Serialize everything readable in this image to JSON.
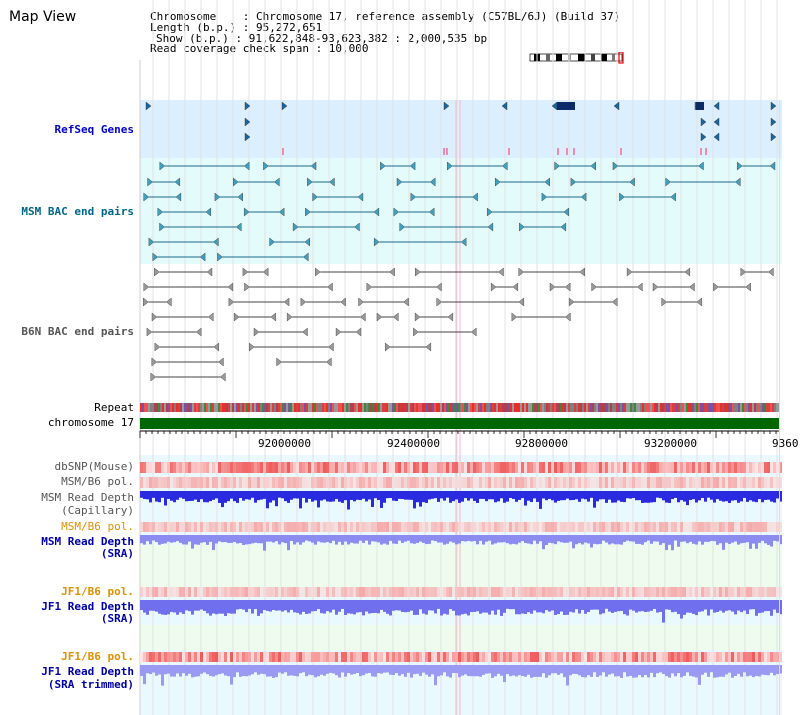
{
  "page_title": "Map View",
  "info": {
    "line1": "Chromosome    : Chromosome 17, reference assembly (C57BL/6J) (Build 37)",
    "line2": "Length (b.p.) : 95,272,651",
    "line3": "Show (b.p.) : 91,622,848-93,623,382 : 2,000,535 bp",
    "line4": "Read coverage check span : 10,000"
  },
  "tracks": {
    "refseq": "RefSeq Genes",
    "msm_bac": "MSM BAC end pairs",
    "b6n_bac": "B6N BAC end pairs",
    "repeat": "Repeat",
    "chromosome": "chromosome 17",
    "dbsnp": "dbSNP(Mouse)",
    "msm_b6_pol_1": "MSM/B6 pol.",
    "msm_read_depth_cap_1": "MSM Read Depth",
    "msm_read_depth_cap_2": "(Capillary)",
    "msm_b6_pol_2": "MSM/B6 pol.",
    "msm_read_depth_sra_1": "MSM Read Depth",
    "msm_read_depth_sra_2": "(SRA)",
    "jf1_b6_pol_1": "JF1/B6 pol.",
    "jf1_read_depth_sra_1": "JF1 Read Depth",
    "jf1_read_depth_sra_2": "(SRA)",
    "jf1_b6_pol_2": "JF1/B6 pol.",
    "jf1_read_depth_trim_1": "JF1 Read Depth",
    "jf1_read_depth_trim_2": "(SRA trimmed)"
  },
  "axis": {
    "ticks": [
      "92000000",
      "92400000",
      "92800000",
      "93200000",
      "9360"
    ]
  },
  "colors": {
    "refseq_label": "#0000cc",
    "msm_bac_label": "#006688",
    "b6n_label": "#555555",
    "pol_label": "#e09000",
    "read_depth_label": "#0000aa",
    "chromosome_bar": "#006600",
    "refseq_bg": "#dcefff",
    "msm_bg": "#e4fbfb",
    "depth_bg": "#eeffee"
  }
}
